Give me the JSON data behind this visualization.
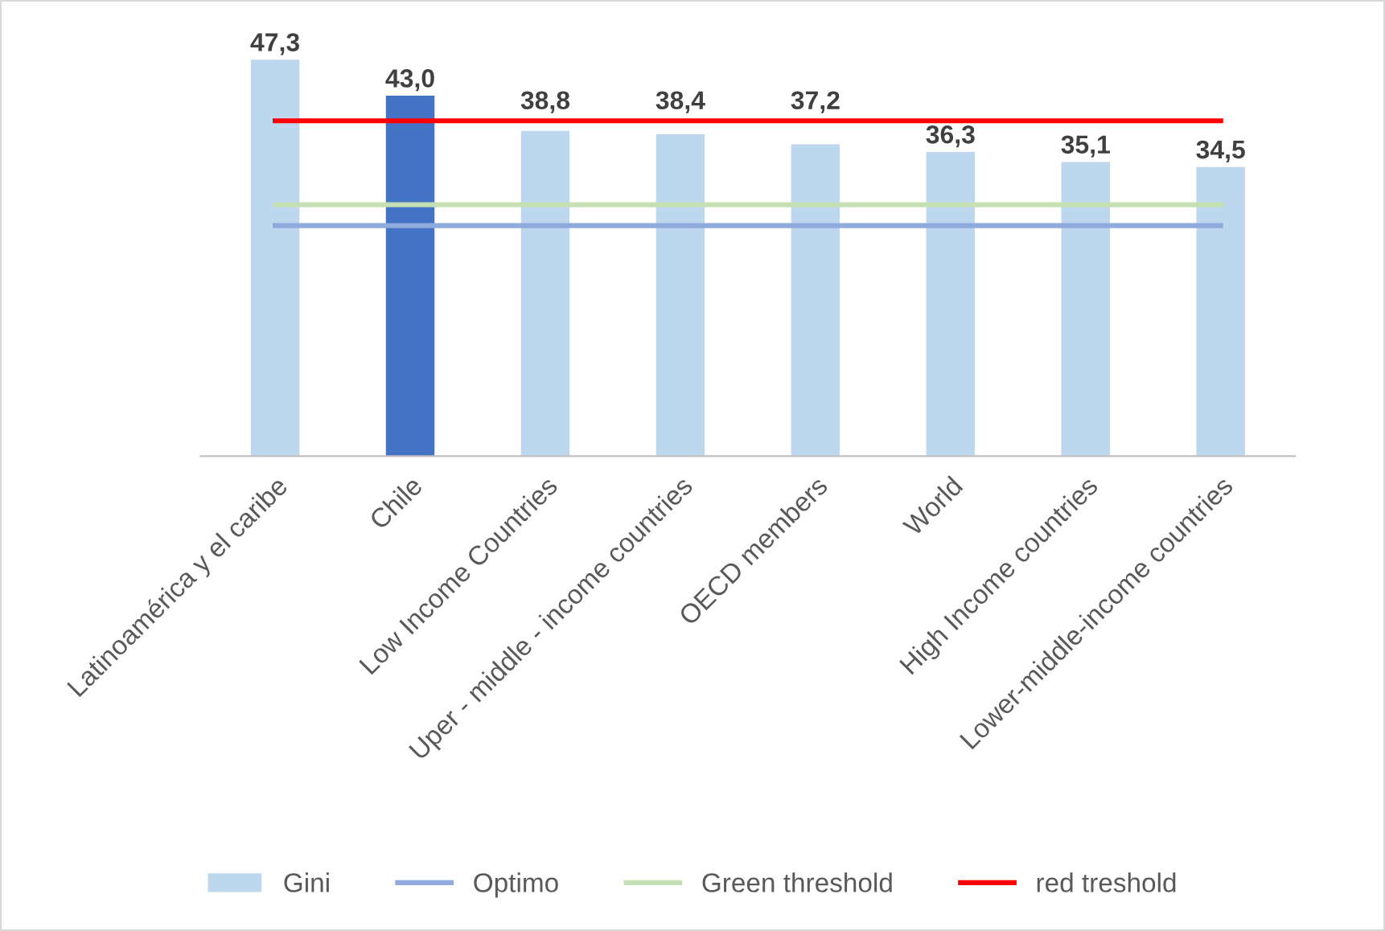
{
  "chart_data": {
    "type": "bar",
    "categories": [
      "Latinoamérica y el caribe",
      "Chile",
      "Low Income Countries",
      "Uper - middle - income countries",
      "OECD members",
      "World",
      "High Income countries",
      "Lower-middle-income countries"
    ],
    "series": [
      {
        "name": "Gini",
        "type": "bar",
        "color": "#bdd7ee",
        "colors": [
          "#bdd7ee",
          "#4472c4",
          "#bdd7ee",
          "#bdd7ee",
          "#bdd7ee",
          "#bdd7ee",
          "#bdd7ee",
          "#bdd7ee"
        ],
        "values": [
          47.3,
          43.0,
          38.8,
          38.4,
          37.2,
          36.3,
          35.1,
          34.5
        ],
        "value_labels": [
          "47,3",
          "43,0",
          "38,8",
          "38,4",
          "37,2",
          "36,3",
          "35,1",
          "34,5"
        ]
      },
      {
        "name": "Optimo",
        "type": "line",
        "color": "#8faadc",
        "values": [
          27.5,
          27.5,
          27.5,
          27.5,
          27.5,
          27.5,
          27.5,
          27.5
        ]
      },
      {
        "name": "Green threshold",
        "type": "line",
        "color": "#c5e0b4",
        "values": [
          30,
          30,
          30,
          30,
          30,
          30,
          30,
          30
        ]
      },
      {
        "name": "red treshold",
        "type": "line",
        "color": "#ff0000",
        "values": [
          40,
          40,
          40,
          40,
          40,
          40,
          40,
          40
        ]
      }
    ],
    "legend": "bottom",
    "grid": false
  }
}
